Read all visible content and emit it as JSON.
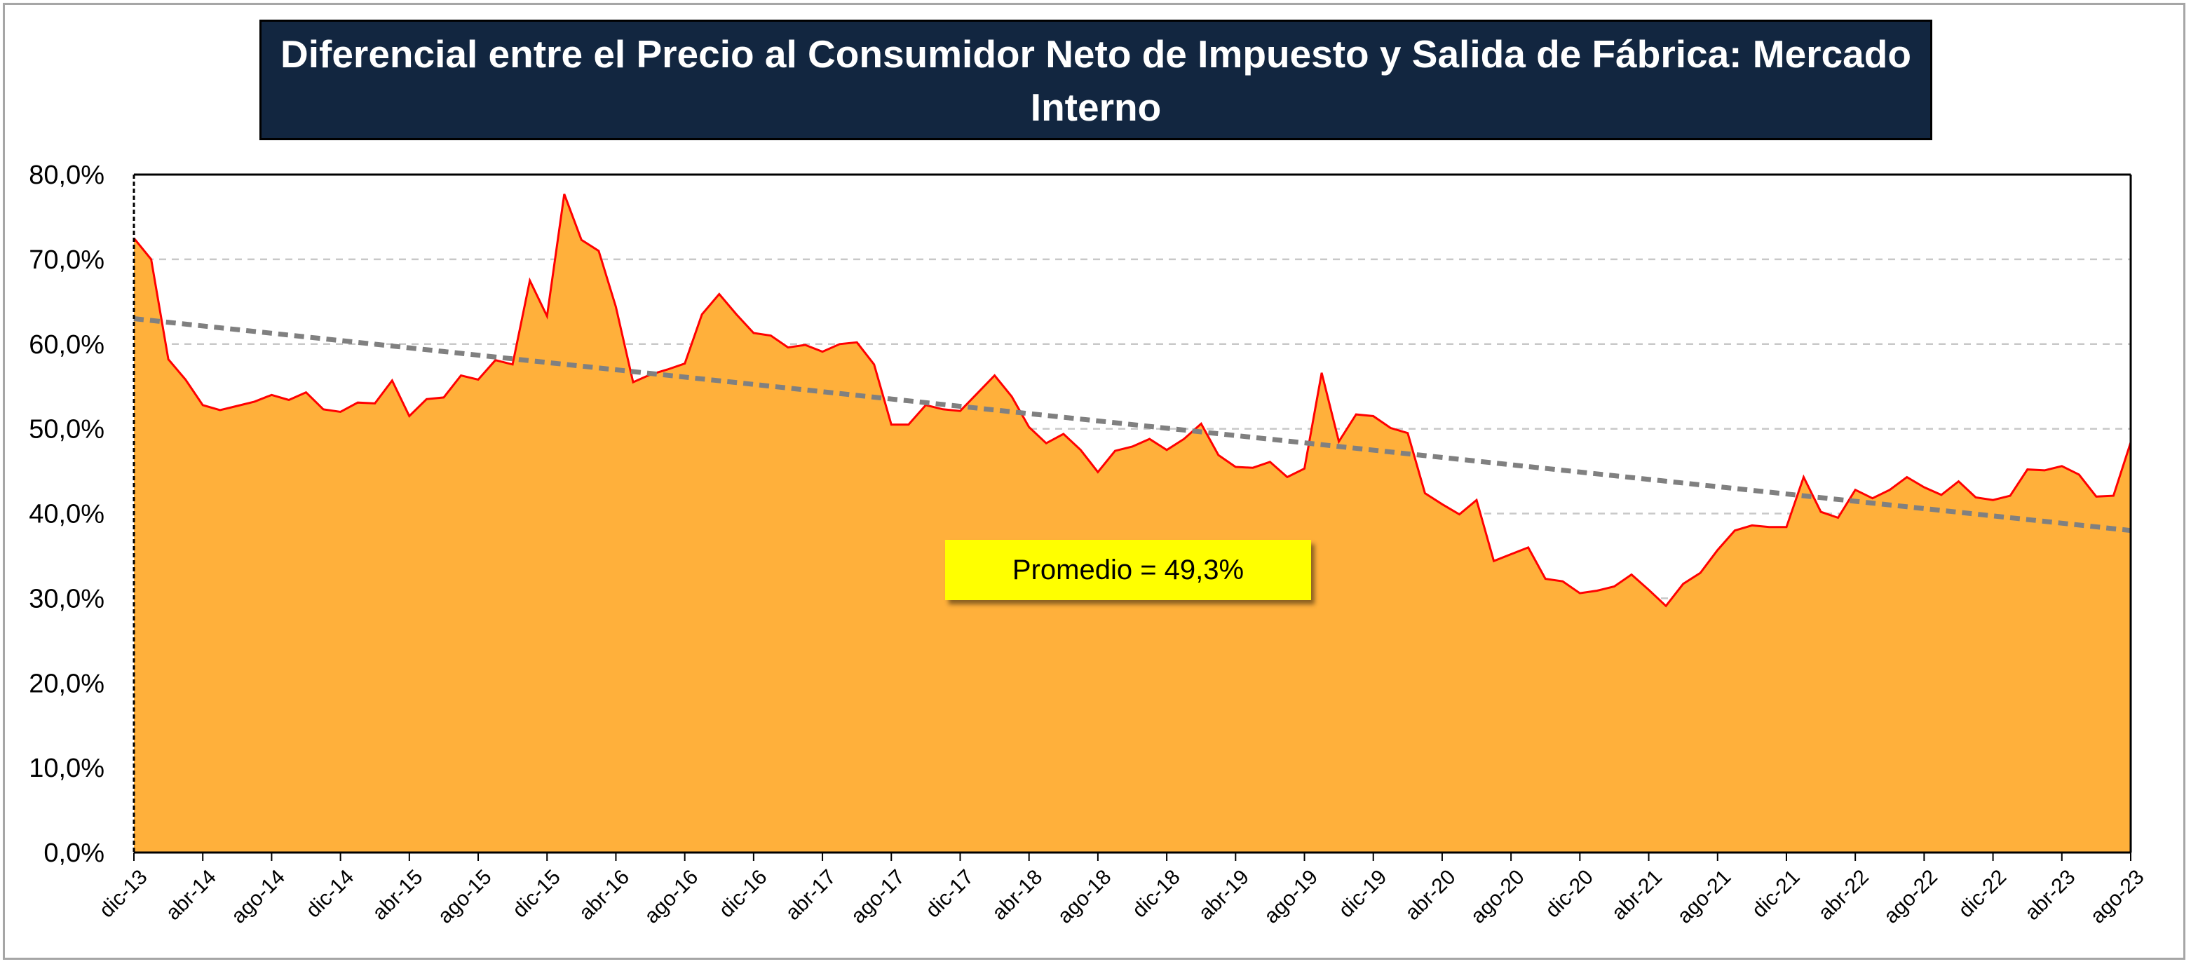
{
  "chart_data": {
    "type": "area",
    "title": "Diferencial entre el Precio al Consumidor Neto de Impuesto y Salida de Fábrica: Mercado Interno",
    "xlabel": "",
    "ylabel": "",
    "ylim": [
      0,
      80
    ],
    "y_ticks": [
      "0,0%",
      "10,0%",
      "20,0%",
      "30,0%",
      "40,0%",
      "50,0%",
      "60,0%",
      "70,0%",
      "80,0%"
    ],
    "x_tick_labels": [
      "dic-13",
      "abr-14",
      "ago-14",
      "dic-14",
      "abr-15",
      "ago-15",
      "dic-15",
      "abr-16",
      "ago-16",
      "dic-16",
      "abr-17",
      "ago-17",
      "dic-17",
      "abr-18",
      "ago-18",
      "dic-18",
      "abr-19",
      "ago-19",
      "dic-19",
      "abr-20",
      "ago-20",
      "dic-20",
      "abr-21",
      "ago-21",
      "dic-21",
      "abr-22",
      "ago-22",
      "dic-22",
      "abr-23",
      "ago-23"
    ],
    "x_start": "dic-13",
    "x_end": "ago-23",
    "grid": "horizontal dashed",
    "series": [
      {
        "values": [
          72.5,
          70.0,
          58.2,
          55.8,
          52.8,
          52.2,
          52.7,
          53.2,
          54.0,
          53.4,
          54.3,
          52.3,
          52.0,
          53.1,
          53.0,
          55.7,
          51.5,
          53.5,
          53.7,
          56.3,
          55.8,
          58.1,
          57.6,
          67.5,
          63.3,
          77.7,
          72.3,
          71.0,
          64.4,
          55.5,
          56.4,
          57.0,
          57.7,
          63.5,
          65.9,
          63.5,
          61.3,
          61.0,
          59.6,
          59.9,
          59.1,
          60.0,
          60.2,
          57.6,
          50.5,
          50.5,
          52.8,
          52.3,
          52.1,
          54.2,
          56.3,
          53.8,
          50.2,
          48.3,
          49.4,
          47.5,
          44.9,
          47.4,
          47.9,
          48.8,
          47.5,
          48.8,
          50.6,
          46.9,
          45.5,
          45.4,
          46.1,
          44.3,
          45.3,
          56.6,
          48.5,
          51.7,
          51.5,
          50.1,
          49.5,
          42.4,
          41.1,
          39.9,
          41.6,
          34.4,
          35.2,
          36.0,
          32.3,
          32.0,
          30.6,
          30.9,
          31.4,
          32.8,
          31.0,
          29.1,
          31.7,
          33.0,
          35.7,
          38.0,
          38.6,
          38.4,
          38.4,
          44.3,
          40.2,
          39.5,
          42.8,
          41.8,
          42.8,
          44.3,
          43.1,
          42.2,
          43.8,
          41.9,
          41.6,
          42.1,
          45.2,
          45.1,
          45.6,
          44.6,
          42.0,
          42.1,
          48.4
        ]
      }
    ],
    "trendline": {
      "start": 63.0,
      "end": 38.0
    },
    "annotation": "Promedio = 49,3%",
    "colors": {
      "area_fill": "#ffb03b",
      "line": "#ff0000",
      "trend": "#808080",
      "title_bg": "#122640",
      "annotation_bg": "#ffff00"
    }
  }
}
